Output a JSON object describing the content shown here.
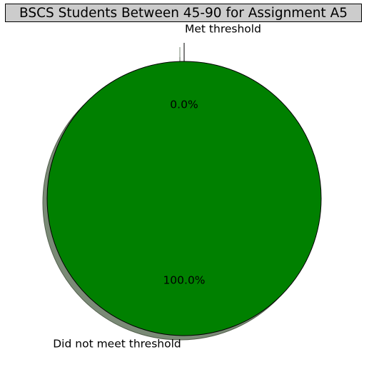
{
  "chart_data": {
    "type": "pie",
    "title": "BSCS Students Between 45-90 for Assignment A5",
    "categories": [
      "Met threshold",
      "Did not meet threshold"
    ],
    "values": [
      0.0,
      100.0
    ],
    "percent_labels": [
      "0.0%",
      "100.0%"
    ],
    "colors": [
      "#008000",
      "#008000"
    ],
    "explode": true,
    "shadow": true,
    "start_angle_deg": 90,
    "legend": "none"
  }
}
